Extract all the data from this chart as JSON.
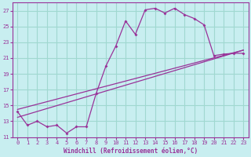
{
  "xlabel": "Windchill (Refroidissement éolien,°C)",
  "bg_color": "#c8eef0",
  "grid_color": "#a0d8d0",
  "line_color": "#993399",
  "xlim": [
    -0.5,
    23.5
  ],
  "ylim": [
    11,
    28
  ],
  "yticks": [
    11,
    13,
    15,
    17,
    19,
    21,
    23,
    25,
    27
  ],
  "xticks": [
    0,
    1,
    2,
    3,
    4,
    5,
    6,
    7,
    8,
    9,
    10,
    11,
    12,
    13,
    14,
    15,
    16,
    17,
    18,
    19,
    20,
    21,
    22,
    23
  ],
  "series1_x": [
    0,
    1,
    2,
    3,
    4,
    5,
    6,
    7,
    8,
    9,
    10,
    11,
    12,
    13,
    14,
    15,
    16,
    17,
    18,
    19,
    20,
    21,
    22,
    23
  ],
  "series1_y": [
    14.2,
    12.5,
    13.0,
    12.3,
    12.5,
    11.5,
    12.3,
    12.3,
    16.5,
    20.0,
    22.5,
    25.7,
    24.0,
    27.1,
    27.3,
    26.7,
    27.3,
    26.5,
    26.0,
    25.2,
    21.3,
    21.5,
    21.6,
    21.6
  ],
  "line1_x": [
    0,
    23
  ],
  "line1_y": [
    13.5,
    22.0
  ],
  "line2_x": [
    0,
    23
  ],
  "line2_y": [
    14.5,
    22.0
  ]
}
